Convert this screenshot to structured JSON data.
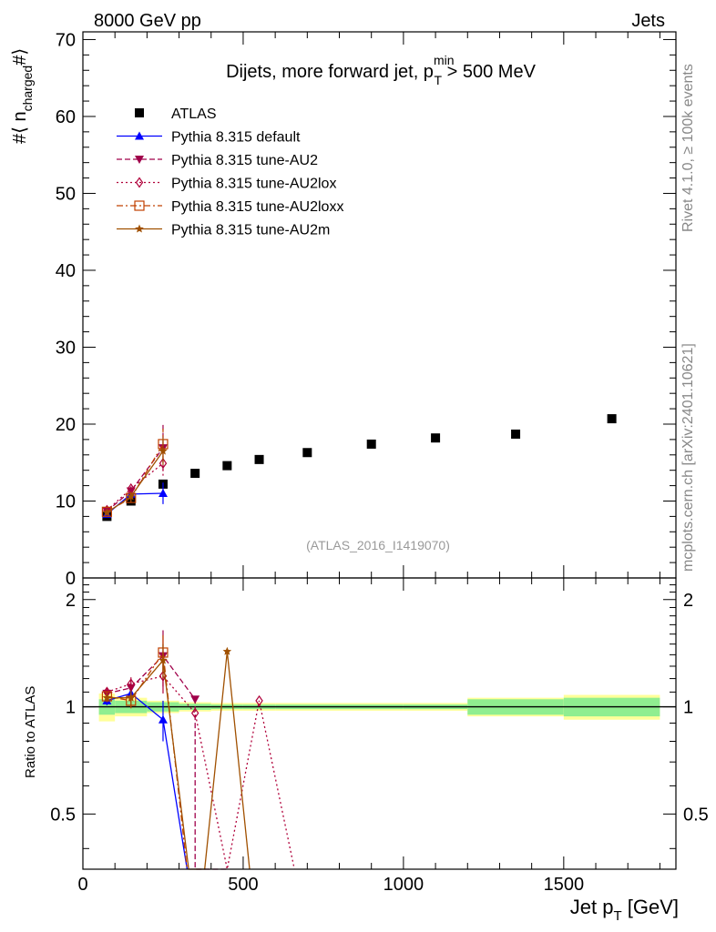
{
  "header": {
    "left": "8000 GeV pp",
    "right": "Jets",
    "side_rivet": "Rivet 4.1.0, ≥ 100k events",
    "side_mcplots": "mcplots.cern.ch [arXiv:2401.10621]",
    "watermark": "(ATLAS_2016_I1419070)"
  },
  "chart_data": [
    {
      "type": "scatter",
      "panel": "main",
      "title": "Dijets, more forward jet, p_T^min > 500 MeV",
      "title_main": "Dijets, more forward jet, p",
      "title_sup": "min",
      "title_sub": "T",
      "title_tail": " > 500 MeV",
      "ylabel": "#⟨ n_charged #⟩",
      "ylabel_pre": "#⟨ n",
      "ylabel_sub": "charged",
      "ylabel_post": "#⟩",
      "xlim": [
        0,
        1850
      ],
      "ylim": [
        0,
        71
      ],
      "xticks": [
        0,
        500,
        1000,
        1500
      ],
      "yticks": [
        0,
        10,
        20,
        30,
        40,
        50,
        60,
        70
      ],
      "grid": false,
      "legend_position": "top-left",
      "series": [
        {
          "name": "ATLAS",
          "color": "#000000",
          "marker": "square",
          "line": "none",
          "x": [
            75,
            150,
            250,
            350,
            450,
            550,
            700,
            900,
            1100,
            1350,
            1650
          ],
          "y": [
            8.0,
            10.0,
            12.2,
            13.6,
            14.6,
            15.4,
            16.3,
            17.4,
            18.2,
            18.7,
            20.7
          ]
        },
        {
          "name": "Pythia 8.315 default",
          "color": "#0000ff",
          "marker": "triangle-up",
          "line": "solid",
          "x": [
            75,
            150,
            250
          ],
          "y": [
            8.3,
            10.9,
            11.0
          ],
          "err": [
            0.3,
            0.6,
            1.4
          ]
        },
        {
          "name": "Pythia 8.315 tune-AU2",
          "color": "#a0004a",
          "marker": "triangle-down",
          "line": "dashed",
          "x": [
            75,
            150,
            250
          ],
          "y": [
            8.7,
            11.3,
            16.9
          ],
          "err": [
            0.3,
            0.6,
            3.0
          ]
        },
        {
          "name": "Pythia 8.315 tune-AU2lox",
          "color": "#b0003a",
          "marker": "diamond-open",
          "line": "dotted",
          "x": [
            75,
            150,
            250
          ],
          "y": [
            8.8,
            11.6,
            14.9
          ],
          "err": [
            0.3,
            0.6,
            1.6
          ]
        },
        {
          "name": "Pythia 8.315 tune-AU2loxx",
          "color": "#c04000",
          "marker": "square-open",
          "line": "dashdot",
          "x": [
            75,
            150,
            250
          ],
          "y": [
            8.6,
            10.4,
            17.4
          ],
          "err": [
            0.3,
            0.6,
            2.0
          ]
        },
        {
          "name": "Pythia 8.315 tune-AU2m",
          "color": "#a05000",
          "marker": "star",
          "line": "solid",
          "x": [
            75,
            150,
            250
          ],
          "y": [
            8.5,
            10.6,
            16.5
          ],
          "err": [
            0.3,
            0.6,
            1.8
          ]
        }
      ]
    },
    {
      "type": "line",
      "panel": "ratio",
      "ylabel": "Ratio to ATLAS",
      "xlabel": "Jet p_T [GeV]",
      "xlabel_main": "Jet p",
      "xlabel_sub": "T",
      "xlabel_tail": " [GeV]",
      "xlim": [
        0,
        1850
      ],
      "ylim": [
        0.35,
        2.3
      ],
      "xticks": [
        0,
        500,
        1000,
        1500
      ],
      "xtick_labels": [
        "0",
        "500",
        "1000",
        "1500"
      ],
      "yticks": [
        0.5,
        1,
        2
      ],
      "ytick_labels": [
        "0.5",
        "1",
        "2"
      ],
      "grid": false,
      "reference_bands": {
        "edges": [
          50,
          100,
          200,
          300,
          400,
          500,
          600,
          800,
          1000,
          1200,
          1500,
          1800
        ],
        "stat": [
          0.05,
          0.04,
          0.03,
          0.02,
          0.015,
          0.015,
          0.015,
          0.015,
          0.015,
          0.05,
          0.06
        ],
        "total": [
          0.09,
          0.06,
          0.04,
          0.03,
          0.025,
          0.025,
          0.025,
          0.025,
          0.025,
          0.06,
          0.08
        ],
        "stat_color": "#90ee90",
        "total_color": "#ffff99"
      },
      "series": [
        {
          "name": "Pythia 8.315 default",
          "x": [
            75,
            150,
            250,
            325
          ],
          "y": [
            1.04,
            1.09,
            0.92,
            0.35
          ],
          "err": [
            0.03,
            0.05,
            0.12,
            0
          ]
        },
        {
          "name": "Pythia 8.315 tune-AU2",
          "x": [
            75,
            150,
            250,
            350,
            350,
            450
          ],
          "y": [
            1.09,
            1.13,
            1.39,
            1.05,
            0.35,
            0.35
          ],
          "err": [
            0.03,
            0.05,
            0.25,
            0,
            0,
            0
          ]
        },
        {
          "name": "Pythia 8.315 tune-AU2lox",
          "x": [
            75,
            150,
            250,
            350,
            450,
            550,
            660
          ],
          "y": [
            1.1,
            1.16,
            1.22,
            0.96,
            0.35,
            1.04,
            0.35
          ],
          "err": [
            0.03,
            0.05,
            0.13,
            0,
            0,
            0,
            0
          ]
        },
        {
          "name": "Pythia 8.315 tune-AU2loxx",
          "x": [
            75,
            150,
            250,
            325
          ],
          "y": [
            1.07,
            1.04,
            1.42,
            0.35
          ],
          "err": [
            0.03,
            0.05,
            0.17,
            0
          ]
        },
        {
          "name": "Pythia 8.315 tune-AU2m",
          "x": [
            75,
            150,
            250,
            330,
            380,
            450,
            520
          ],
          "y": [
            1.06,
            1.06,
            1.35,
            0.35,
            0.35,
            1.43,
            0.35
          ],
          "err": [
            0.03,
            0.05,
            0.15,
            0,
            0,
            0,
            0
          ]
        }
      ]
    }
  ]
}
